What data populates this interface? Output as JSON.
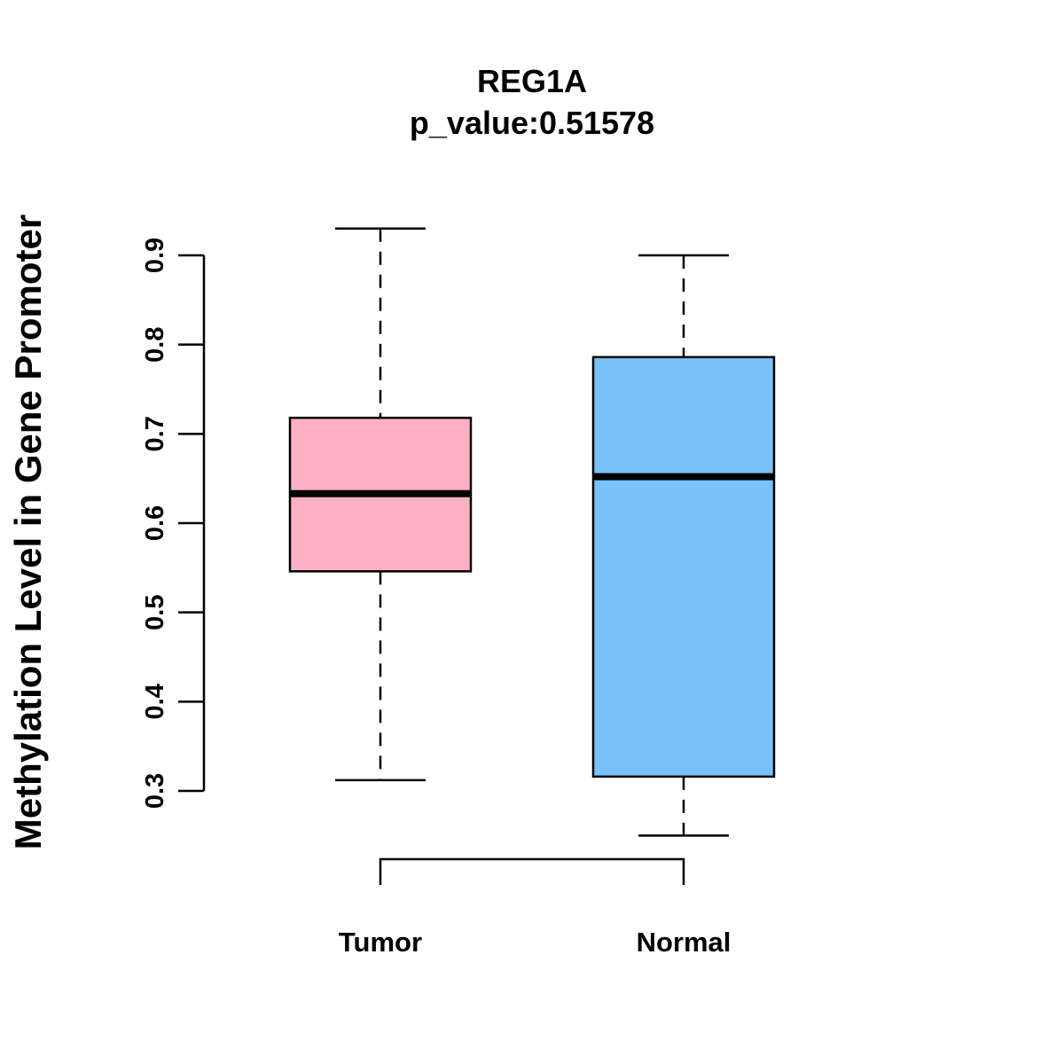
{
  "chart_data": {
    "type": "boxplot",
    "title": "REG1A",
    "subtitle": "p_value:0.51578",
    "xlabel": "",
    "ylabel": "Methylation Level in Gene Promoter",
    "ylim": [
      0.3,
      0.9
    ],
    "yticks": [
      0.3,
      0.4,
      0.5,
      0.6,
      0.7,
      0.8,
      0.9
    ],
    "ytick_labels": [
      "0.3",
      "0.4",
      "0.5",
      "0.6",
      "0.7",
      "0.8",
      "0.9"
    ],
    "categories": [
      "Tumor",
      "Normal"
    ],
    "series": [
      {
        "name": "Tumor",
        "color": "#FBB1C3",
        "whisker_low": 0.312,
        "q1": 0.546,
        "median": 0.633,
        "q3": 0.718,
        "whisker_high": 0.93
      },
      {
        "name": "Normal",
        "color": "#78C1F9",
        "whisker_low": 0.25,
        "q1": 0.316,
        "median": 0.652,
        "q3": 0.786,
        "whisker_high": 0.9
      }
    ],
    "comparison_bracket": [
      "Tumor",
      "Normal"
    ]
  }
}
